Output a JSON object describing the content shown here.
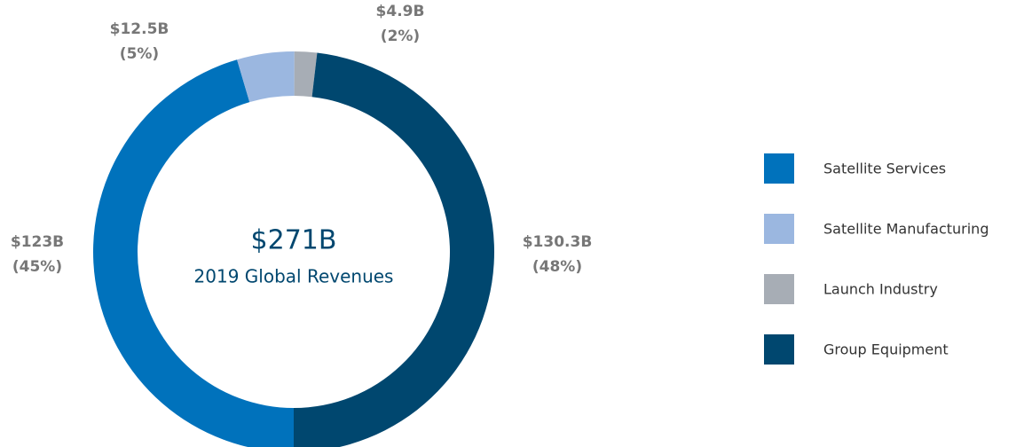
{
  "chart_data": {
    "type": "donut",
    "center_title": "$271B",
    "center_subtitle": "2019 Global Revenues",
    "categories": [
      "Satellite Services",
      "Satellite Manufacturing",
      "Launch Industry",
      "Group Equipment"
    ],
    "values": [
      123,
      12.5,
      4.9,
      130.3
    ],
    "value_labels": [
      "$123B",
      "$12.5B",
      "$4.9B",
      "$130.3B"
    ],
    "shares": [
      45,
      5,
      2,
      48
    ],
    "share_labels": [
      "(45%)",
      "(5%)",
      "(2%)",
      "(48%)"
    ],
    "colors": [
      "#0072bc",
      "#9bb7e0",
      "#a7adb5",
      "#00476f"
    ],
    "legend": "right"
  }
}
